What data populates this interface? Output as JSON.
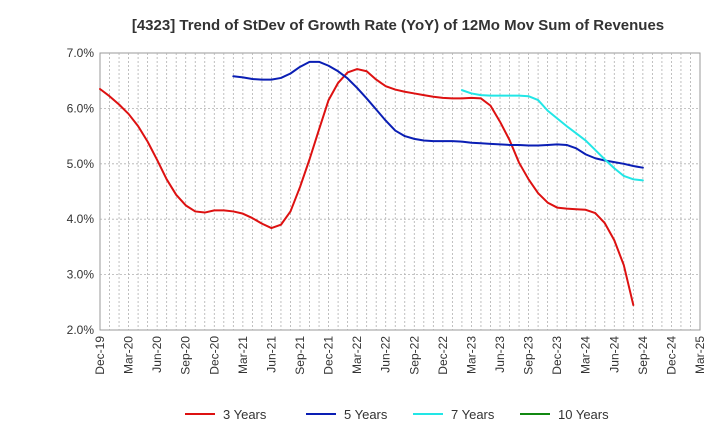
{
  "chart_data": {
    "type": "line",
    "title": "[4323]  Trend of StDev of Growth Rate (YoY) of 12Mo Mov Sum of Revenues",
    "xlabel": "",
    "ylabel": "",
    "ylim": [
      2.0,
      7.0
    ],
    "yticks": [
      "2.0%",
      "3.0%",
      "4.0%",
      "5.0%",
      "6.0%",
      "7.0%"
    ],
    "x_tick_labels": [
      "Dec-19",
      "Mar-20",
      "Jun-20",
      "Sep-20",
      "Dec-20",
      "Mar-21",
      "Jun-21",
      "Sep-21",
      "Dec-21",
      "Mar-22",
      "Jun-22",
      "Sep-22",
      "Dec-22",
      "Mar-23",
      "Jun-23",
      "Sep-23",
      "Dec-23",
      "Mar-24",
      "Jun-24",
      "Sep-24",
      "Dec-24",
      "Mar-25"
    ],
    "grid": true,
    "legend_position": "bottom",
    "series": [
      {
        "name": "3 Years",
        "color": "#dd1111",
        "start_index": 0,
        "values": [
          6.35,
          6.22,
          6.07,
          5.9,
          5.68,
          5.4,
          5.07,
          4.72,
          4.44,
          4.25,
          4.14,
          4.12,
          4.16,
          4.16,
          4.14,
          4.1,
          4.02,
          3.92,
          3.84,
          3.9,
          4.14,
          4.58,
          5.08,
          5.62,
          6.15,
          6.46,
          6.65,
          6.71,
          6.67,
          6.52,
          6.4,
          6.34,
          6.3,
          6.27,
          6.24,
          6.21,
          6.19,
          6.18,
          6.18,
          6.19,
          6.18,
          6.05,
          5.76,
          5.43,
          5.02,
          4.72,
          4.47,
          4.3,
          4.21,
          4.19,
          4.18,
          4.17,
          4.11,
          3.93,
          3.62,
          3.17,
          2.45
        ]
      },
      {
        "name": "5 Years",
        "color": "#0a1eb4",
        "start_index": 14,
        "values": [
          6.58,
          6.56,
          6.53,
          6.52,
          6.52,
          6.55,
          6.63,
          6.75,
          6.84,
          6.84,
          6.77,
          6.67,
          6.54,
          6.37,
          6.18,
          5.98,
          5.78,
          5.6,
          5.5,
          5.45,
          5.42,
          5.41,
          5.41,
          5.41,
          5.4,
          5.38,
          5.37,
          5.36,
          5.35,
          5.34,
          5.34,
          5.33,
          5.33,
          5.34,
          5.35,
          5.34,
          5.28,
          5.17,
          5.1,
          5.06,
          5.03,
          5.0,
          4.96,
          4.93
        ]
      },
      {
        "name": "7 Years",
        "color": "#22e6e6",
        "start_index": 38,
        "values": [
          6.33,
          6.27,
          6.24,
          6.23,
          6.23,
          6.23,
          6.23,
          6.22,
          6.15,
          5.96,
          5.82,
          5.68,
          5.55,
          5.42,
          5.25,
          5.08,
          4.92,
          4.78,
          4.72,
          4.7
        ]
      },
      {
        "name": "10 Years",
        "color": "#118811",
        "start_index": 0,
        "values": []
      }
    ]
  }
}
